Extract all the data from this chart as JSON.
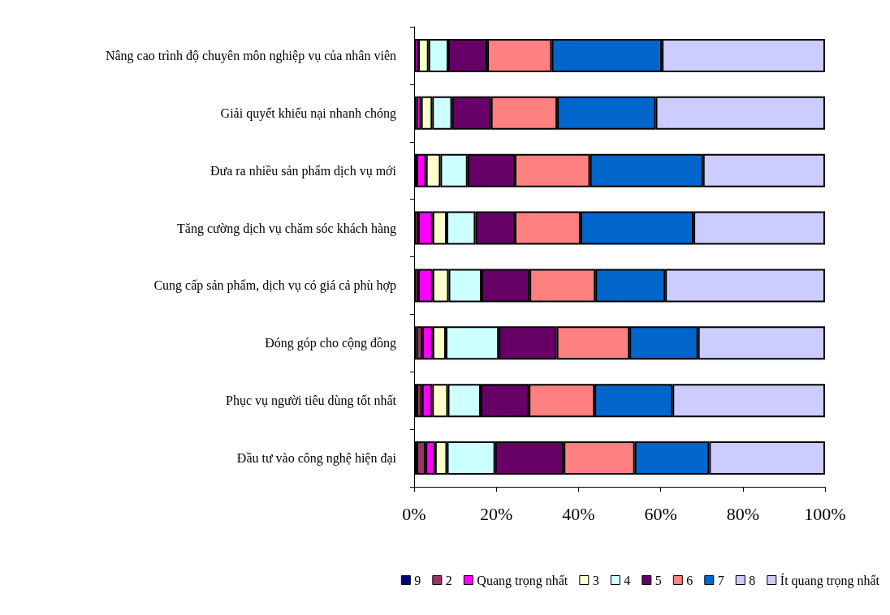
{
  "chart_data": {
    "type": "bar",
    "orientation": "horizontal",
    "stacked": true,
    "grid": false,
    "legend": "bottom",
    "categories": [
      "Nâng cao trình độ chuyên môn nghiệp vụ của nhân viên",
      "Giải quyết khiếu nại nhanh chóng",
      "Đưa ra nhiều sản phẩm dịch vụ mới",
      "Tăng cường dịch vụ chăm sóc khách hàng",
      "Cung cấp sản phẩm, dịch vụ có giá cả phù hợp",
      "Đóng góp cho cộng đồng",
      "Phục vụ người tiêu dùng tốt nhất",
      "Đầu tư vào công nghệ hiện đại"
    ],
    "xlim": [
      0,
      100
    ],
    "xticks": [
      {
        "value": 0,
        "label": "0%"
      },
      {
        "value": 20,
        "label": "20%"
      },
      {
        "value": 40,
        "label": "40%"
      },
      {
        "value": 60,
        "label": "60%"
      },
      {
        "value": 80,
        "label": "80%"
      },
      {
        "value": 100,
        "label": "100%"
      }
    ],
    "series": [
      {
        "name": "9",
        "color": "#000080",
        "values": [
          0,
          0,
          0,
          0,
          0,
          0.5,
          0.6,
          0.6
        ]
      },
      {
        "name": "2",
        "color": "#993366",
        "values": [
          0,
          0.5,
          0.6,
          1.0,
          1.0,
          1.5,
          1.3,
          2.2
        ]
      },
      {
        "name": "Quang trọng nhất",
        "color": "#ff00ff",
        "values": [
          1.0,
          1.2,
          2.3,
          3.5,
          3.5,
          2.5,
          2.5,
          2.3
        ]
      },
      {
        "name": "3",
        "color": "#ffffcc",
        "values": [
          2.5,
          2.7,
          3.5,
          3.4,
          3.9,
          3.2,
          3.8,
          2.9
        ]
      },
      {
        "name": "4",
        "color": "#ccffff",
        "values": [
          4.8,
          4.8,
          6.6,
          7.0,
          8.0,
          12.9,
          8.0,
          11.7
        ]
      },
      {
        "name": "5",
        "color": "#660066",
        "values": [
          9.5,
          9.5,
          11.5,
          9.6,
          11.7,
          14.1,
          11.7,
          16.7
        ]
      },
      {
        "name": "6",
        "color": "#ff8080",
        "values": [
          15.7,
          16.1,
          18.3,
          16.0,
          16.0,
          17.7,
          16.0,
          17.3
        ]
      },
      {
        "name": "7",
        "color": "#0066cc",
        "values": [
          26.8,
          24.0,
          27.5,
          27.5,
          17.0,
          16.7,
          19.0,
          18.1
        ]
      },
      {
        "name": "8",
        "color": "#ccccff",
        "values": [
          0,
          0,
          0,
          0,
          0,
          0,
          0,
          0
        ]
      },
      {
        "name": "Ít quang trọng nhất",
        "color": "#ccccff",
        "values": [
          39.7,
          41.2,
          29.7,
          32.0,
          38.9,
          30.9,
          37.1,
          28.2
        ]
      }
    ]
  }
}
